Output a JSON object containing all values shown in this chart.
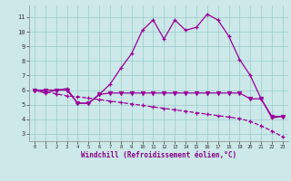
{
  "x": [
    0,
    1,
    2,
    3,
    4,
    5,
    6,
    7,
    8,
    9,
    10,
    11,
    12,
    13,
    14,
    15,
    16,
    17,
    18,
    19,
    20,
    21,
    22,
    23
  ],
  "line1": [
    6.0,
    5.8,
    6.0,
    6.1,
    5.1,
    5.1,
    5.7,
    6.4,
    7.5,
    8.5,
    10.1,
    10.8,
    9.5,
    10.8,
    10.1,
    10.3,
    11.2,
    10.8,
    9.7,
    8.1,
    7.0,
    5.4,
    4.1,
    4.2
  ],
  "line2": [
    6.0,
    6.0,
    6.0,
    6.0,
    5.1,
    5.1,
    5.7,
    5.8,
    5.8,
    5.8,
    5.8,
    5.8,
    5.8,
    5.8,
    5.8,
    5.8,
    5.8,
    5.8,
    5.8,
    5.8,
    5.4,
    5.4,
    4.2,
    4.2
  ],
  "line3": [
    6.0,
    5.9,
    5.75,
    5.6,
    5.55,
    5.45,
    5.35,
    5.25,
    5.15,
    5.05,
    4.95,
    4.85,
    4.75,
    4.65,
    4.55,
    4.45,
    4.35,
    4.25,
    4.15,
    4.05,
    3.85,
    3.55,
    3.2,
    2.8
  ],
  "bg_color": "#cce8e8",
  "line_color": "#990099",
  "grid_color": "#99cccc",
  "xlabel": "Windchill (Refroidissement éolien,°C)",
  "xlabel_color": "#880088",
  "yticks": [
    3,
    4,
    5,
    6,
    7,
    8,
    9,
    10,
    11
  ],
  "xticks": [
    0,
    1,
    2,
    3,
    4,
    5,
    6,
    7,
    8,
    9,
    10,
    11,
    12,
    13,
    14,
    15,
    16,
    17,
    18,
    19,
    20,
    21,
    22,
    23
  ],
  "ylim": [
    2.5,
    11.8
  ],
  "xlim": [
    -0.5,
    23.5
  ],
  "figsize": [
    3.2,
    2.0
  ],
  "dpi": 100
}
